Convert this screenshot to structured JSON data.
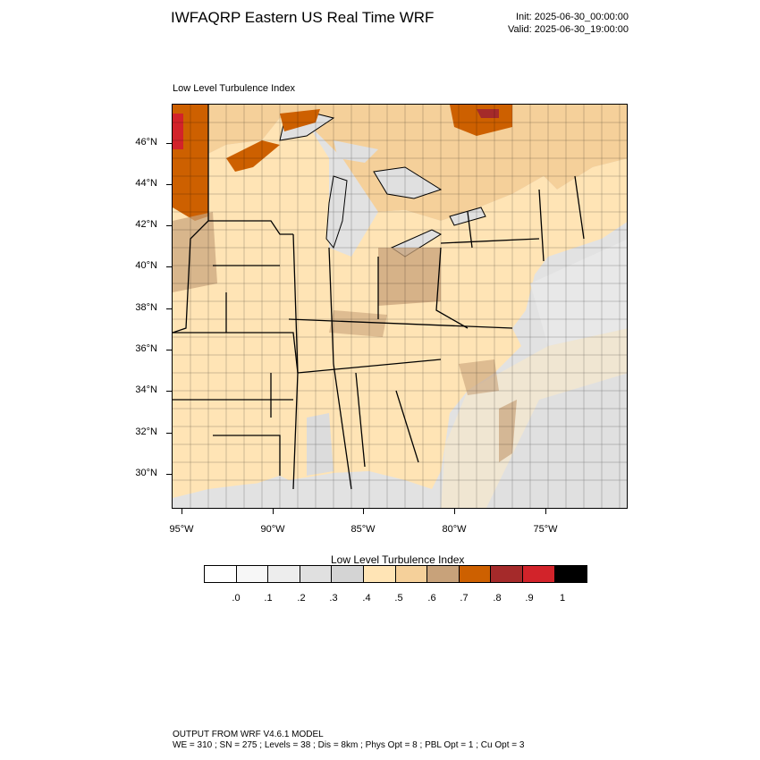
{
  "header": {
    "title": "IWFAQRP Eastern US Real Time WRF",
    "init": "Init: 2025-06-30_00:00:00",
    "valid": "Valid: 2025-06-30_19:00:00"
  },
  "plot": {
    "subtitle": "Low Level Turbulence Index",
    "lat_labels": [
      "46°N",
      "44°N",
      "42°N",
      "40°N",
      "38°N",
      "36°N",
      "34°N",
      "32°N",
      "30°N"
    ],
    "lon_labels": [
      "95°W",
      "90°W",
      "85°W",
      "80°W",
      "75°W"
    ]
  },
  "colorbar": {
    "title": "Low Level Turbulence Index",
    "colors": [
      "#ffffff",
      "#f7f7f7",
      "#ededed",
      "#e0e0e0",
      "#d4d4d4",
      "#ffe4b5",
      "#f5d09a",
      "#c8a27a",
      "#cd6000",
      "#a52a2a",
      "#d2232a",
      "#000000"
    ],
    "labels": [
      ".0",
      ".1",
      ".2",
      ".3",
      ".4",
      ".5",
      ".6",
      ".7",
      ".8",
      ".9",
      "1"
    ]
  },
  "footer": {
    "line1": "OUTPUT FROM WRF V4.6.1 MODEL",
    "line2": "WE = 310 ; SN = 275 ; Levels = 38 ; Dis = 8km ; Phys Opt = 8 ; PBL Opt = 1 ; Cu Opt = 3"
  }
}
